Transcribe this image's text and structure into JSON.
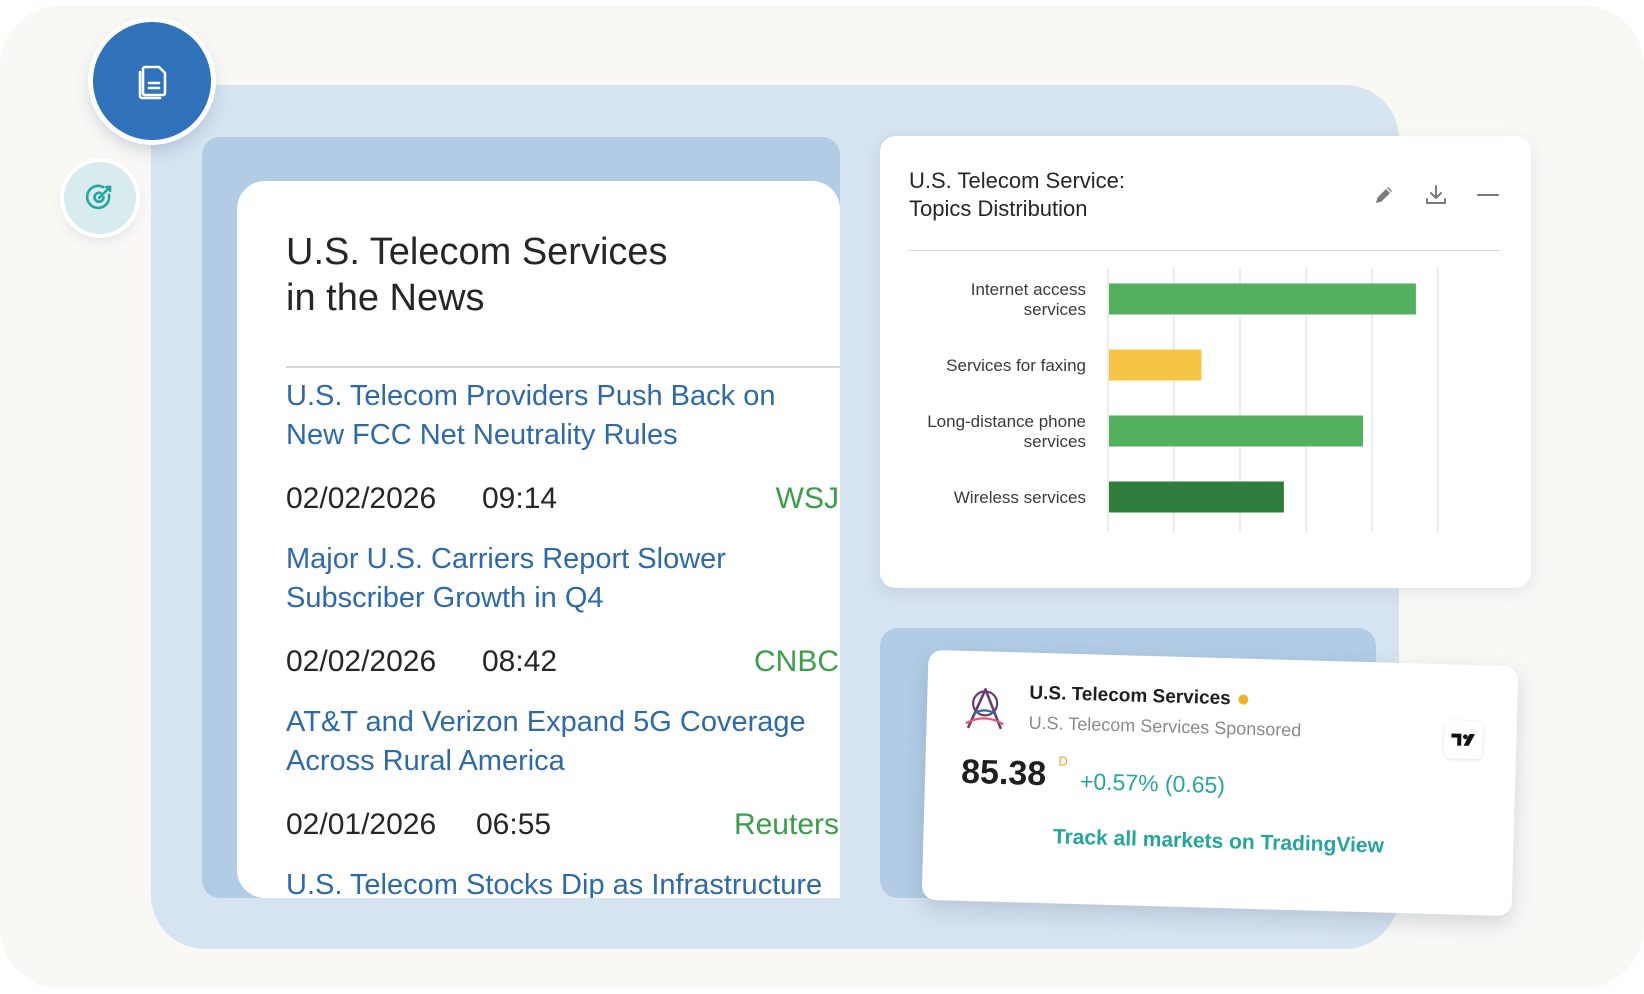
{
  "news": {
    "title_line1": "U.S. Telecom Services",
    "title_line2": "in the News",
    "items": [
      {
        "headline": "U.S. Telecom Providers Push Back on New FCC Net Neutrality Rules",
        "date": "02/02/2026",
        "time": "09:14",
        "source": "WSJ"
      },
      {
        "headline": "Major U.S. Carriers Report Slower Subscriber Growth in Q4",
        "date": "02/02/2026",
        "time": "08:42",
        "source": "CNBC"
      },
      {
        "headline": "AT&T and Verizon Expand 5G Coverage Across Rural America",
        "date": "02/01/2026",
        "time": "06:55",
        "source": "Reuters"
      },
      {
        "headline": "U.S. Telecom Stocks Dip as Infrastructure"
      }
    ]
  },
  "chart_card": {
    "title_line1": "U.S. Telecom Service:",
    "title_line2": "Topics Distribution",
    "actions": [
      "pencil-icon",
      "download-icon",
      "minimize-icon"
    ]
  },
  "chart_data": {
    "type": "bar",
    "orientation": "horizontal",
    "title": "U.S. Telecom Service: Topics Distribution",
    "categories": [
      [
        "Internet access",
        "services"
      ],
      [
        "Services for faxing"
      ],
      [
        "Long-distance phone",
        "services"
      ],
      [
        "Wireless services"
      ]
    ],
    "values": [
      4.65,
      1.4,
      3.85,
      2.65
    ],
    "colors": [
      "#52b05f",
      "#f5c445",
      "#52b05f",
      "#2e7d3c"
    ],
    "xlim": [
      0,
      5
    ],
    "grid": true,
    "xlabel": "",
    "ylabel": ""
  },
  "ticker": {
    "name": "U.S. Telecom Services",
    "subtitle": "U.S. Telecom Services Sponsored",
    "price": "85.38",
    "price_flag": "D",
    "change": "+0.57% (0.65)",
    "cta": "Track all markets on TradingView",
    "brand_color": "#26a69a"
  },
  "nav": {
    "primary_icon": "documents-icon",
    "secondary_icon": "target-icon",
    "primary_color": "#2f72b9"
  }
}
